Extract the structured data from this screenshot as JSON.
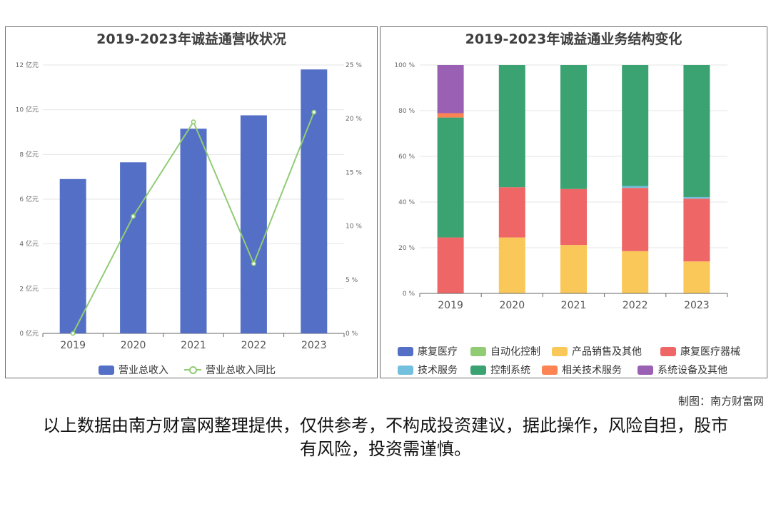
{
  "left_chart": {
    "title": "2019-2023年诚益通营收状况",
    "legend": [
      {
        "label": "营业总收入",
        "color": "#5470c6",
        "kind": "bar"
      },
      {
        "label": "营业总收入同比",
        "color": "#91cc75",
        "kind": "line"
      }
    ]
  },
  "right_chart": {
    "title": "2019-2023年诚益通业务结构变化",
    "legend": [
      {
        "label": "康复医疗",
        "color": "#5470c6"
      },
      {
        "label": "自动化控制",
        "color": "#91cc75"
      },
      {
        "label": "产品销售及其他",
        "color": "#fac858"
      },
      {
        "label": "康复医疗器械",
        "color": "#ee6666"
      },
      {
        "label": "技术服务",
        "color": "#73c0de"
      },
      {
        "label": "控制系统",
        "color": "#3ba272"
      },
      {
        "label": "相关技术服务",
        "color": "#fc8452"
      },
      {
        "label": "系统设备及其他",
        "color": "#9a60b4"
      }
    ]
  },
  "chart_data": [
    {
      "type": "bar",
      "title": "2019-2023年诚益通营收状况",
      "categories": [
        "2019",
        "2020",
        "2021",
        "2022",
        "2023"
      ],
      "series": [
        {
          "name": "营业总收入",
          "type": "bar",
          "axis": "left",
          "color": "#5470c6",
          "values": [
            6.9,
            7.65,
            9.15,
            9.75,
            11.8
          ]
        },
        {
          "name": "营业总收入同比",
          "type": "line",
          "axis": "right",
          "color": "#91cc75",
          "values": [
            0,
            10.9,
            19.7,
            6.5,
            20.6
          ]
        }
      ],
      "y_left": {
        "min": 0,
        "max": 12,
        "ticks": [
          0,
          2,
          4,
          6,
          8,
          10,
          12
        ],
        "unit": "亿元"
      },
      "y_right": {
        "min": 0,
        "max": 25,
        "ticks": [
          0,
          5,
          10,
          15,
          20,
          25
        ],
        "unit": "%"
      },
      "grid": true,
      "legend_position": "bottom"
    },
    {
      "type": "bar",
      "stacked": true,
      "title": "2019-2023年诚益通业务结构变化",
      "categories": [
        "2019",
        "2020",
        "2021",
        "2022",
        "2023"
      ],
      "series": [
        {
          "name": "康复医疗",
          "color": "#5470c6",
          "values": [
            0,
            0,
            0,
            0,
            0
          ]
        },
        {
          "name": "自动化控制",
          "color": "#91cc75",
          "values": [
            0,
            0,
            0,
            0,
            0
          ]
        },
        {
          "name": "产品销售及其他",
          "color": "#fac858",
          "values": [
            0,
            24.5,
            21.2,
            18.5,
            14
          ]
        },
        {
          "name": "康复医疗器械",
          "color": "#ee6666",
          "values": [
            24.5,
            22,
            24.5,
            27.7,
            27.5
          ]
        },
        {
          "name": "技术服务",
          "color": "#73c0de",
          "values": [
            0,
            0,
            0,
            0.8,
            0.7
          ]
        },
        {
          "name": "控制系统",
          "color": "#3ba272",
          "values": [
            52.5,
            53.5,
            54.3,
            53,
            57.8
          ]
        },
        {
          "name": "相关技术服务",
          "color": "#fc8452",
          "values": [
            1.9,
            0,
            0,
            0,
            0
          ]
        },
        {
          "name": "系统设备及其他",
          "color": "#9a60b4",
          "values": [
            21.1,
            0,
            0,
            0,
            0
          ]
        }
      ],
      "y": {
        "min": 0,
        "max": 100,
        "ticks": [
          0,
          20,
          40,
          60,
          80,
          100
        ],
        "unit": "%"
      },
      "grid": true,
      "legend_position": "bottom"
    }
  ],
  "footer": {
    "credit": "制图：南方财富网",
    "disclaimer": "以上数据由南方财富网整理提供，仅供参考，不构成投资建议，据此操作，风险自担，股市有风险，投资需谨慎。"
  }
}
